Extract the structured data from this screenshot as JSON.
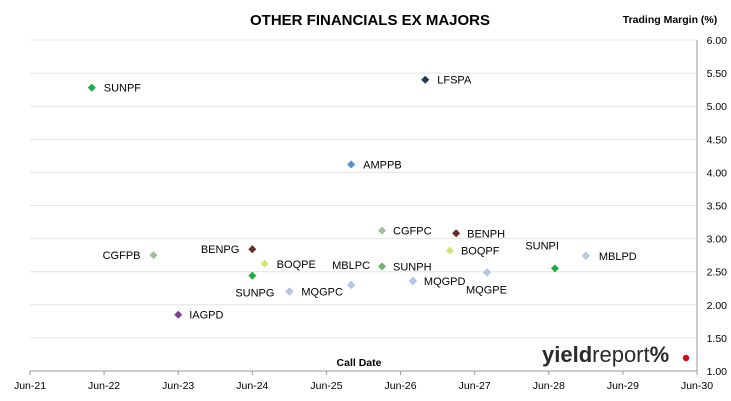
{
  "chart_data": {
    "type": "scatter",
    "title": "OTHER FINANCIALS EX MAJORS",
    "ylabel": "Trading Margin (%)",
    "xlabel": "Call Date",
    "xticks": [
      "Jun-21",
      "Jun-22",
      "Jun-23",
      "Jun-24",
      "Jun-25",
      "Jun-26",
      "Jun-27",
      "Jun-28",
      "Jun-29",
      "Jun-30"
    ],
    "yticks": [
      "1.00",
      "1.50",
      "2.00",
      "2.50",
      "3.00",
      "3.50",
      "4.00",
      "4.50",
      "5.00",
      "5.50",
      "6.00"
    ],
    "ylim": [
      1.0,
      6.0
    ],
    "xlim": [
      "2021-06",
      "2030-06"
    ],
    "grid": "horizontal",
    "points": [
      {
        "label": "SUNPF",
        "x": "2022-04",
        "y": 5.28,
        "color": "#22aa44"
      },
      {
        "label": "LFSPA",
        "x": "2026-10",
        "y": 5.4,
        "color": "#1f3b5c"
      },
      {
        "label": "AMPPB",
        "x": "2025-10",
        "y": 4.12,
        "color": "#5b8fd0"
      },
      {
        "label": "CGFPC",
        "x": "2026-03",
        "y": 3.12,
        "color": "#9dbf94"
      },
      {
        "label": "BENPH",
        "x": "2027-03",
        "y": 3.08,
        "color": "#6b2a2a"
      },
      {
        "label": "BENPG",
        "x": "2024-06",
        "y": 2.84,
        "color": "#6b2a2a"
      },
      {
        "label": "BOQPF",
        "x": "2027-02",
        "y": 2.82,
        "color": "#d7e07a"
      },
      {
        "label": "CGFPB",
        "x": "2023-02",
        "y": 2.75,
        "color": "#9dbf94"
      },
      {
        "label": "MBLPD",
        "x": "2028-12",
        "y": 2.74,
        "color": "#b8c8e8"
      },
      {
        "label": "BOQPE",
        "x": "2024-08",
        "y": 2.62,
        "color": "#d7e07a"
      },
      {
        "label": "SUNPH",
        "x": "2026-03",
        "y": 2.58,
        "color": "#6fb56f"
      },
      {
        "label": "SUNPI",
        "x": "2028-07",
        "y": 2.55,
        "color": "#22aa44"
      },
      {
        "label": "MQGPE",
        "x": "2027-08",
        "y": 2.49,
        "color": "#b8c8e8"
      },
      {
        "label": "SUNPG",
        "x": "2024-06",
        "y": 2.44,
        "color": "#22aa44"
      },
      {
        "label": "MQGPD",
        "x": "2026-08",
        "y": 2.36,
        "color": "#b8c8e8"
      },
      {
        "label": "MBLPC",
        "x": "2025-10",
        "y": 2.3,
        "color": "#b8c8e8"
      },
      {
        "label": "MQGPC",
        "x": "2024-12",
        "y": 2.2,
        "color": "#b8c8e8"
      },
      {
        "label": "IAGPD",
        "x": "2023-06",
        "y": 1.85,
        "color": "#7a3fa0"
      }
    ]
  },
  "logo": {
    "bold": "yield",
    "thin": "report",
    "pct": "%"
  }
}
